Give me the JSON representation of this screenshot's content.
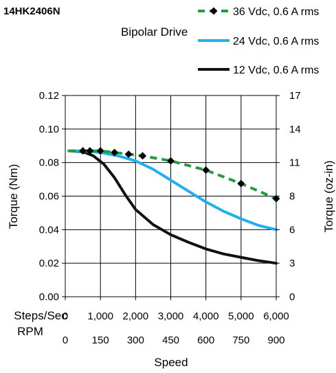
{
  "chart_data": {
    "type": "line",
    "title": "14HK2406N",
    "subtitle": "Bipolar Drive",
    "xlabel": "Speed",
    "ylabel": "Torque (Nm)",
    "ylabel_right": "Torque (oz-in)",
    "x_row_labels": [
      "Steps/Sec",
      "RPM"
    ],
    "xlim": [
      0,
      6000
    ],
    "ylim": [
      0,
      0.12
    ],
    "grid": true,
    "legend_position": "top-right",
    "x_ticks_steps": [
      {
        "value": 0,
        "label": "0"
      },
      {
        "value": 1000,
        "label": "1,000"
      },
      {
        "value": 2000,
        "label": "2,000"
      },
      {
        "value": 3000,
        "label": "3,000"
      },
      {
        "value": 4000,
        "label": "4,000"
      },
      {
        "value": 5000,
        "label": "5,000"
      },
      {
        "value": 6000,
        "label": "6,000"
      }
    ],
    "x_ticks_rpm": [
      {
        "value": 0,
        "label": "0"
      },
      {
        "value": 1000,
        "label": "150"
      },
      {
        "value": 2000,
        "label": "300"
      },
      {
        "value": 3000,
        "label": "450"
      },
      {
        "value": 4000,
        "label": "600"
      },
      {
        "value": 5000,
        "label": "750"
      },
      {
        "value": 6000,
        "label": "900"
      }
    ],
    "y_ticks_left": [
      {
        "value": 0,
        "label": "0.00"
      },
      {
        "value": 0.02,
        "label": "0.02"
      },
      {
        "value": 0.04,
        "label": "0.04"
      },
      {
        "value": 0.06,
        "label": "0.06"
      },
      {
        "value": 0.08,
        "label": "0.08"
      },
      {
        "value": 0.1,
        "label": "0.10"
      },
      {
        "value": 0.12,
        "label": "0.12"
      }
    ],
    "y_ticks_right": [
      {
        "value": 0,
        "label": "0"
      },
      {
        "value": 0.02,
        "label": "3"
      },
      {
        "value": 0.04,
        "label": "6"
      },
      {
        "value": 0.06,
        "label": "8"
      },
      {
        "value": 0.08,
        "label": "11"
      },
      {
        "value": 0.1,
        "label": "14"
      },
      {
        "value": 0.12,
        "label": "17"
      }
    ],
    "series": [
      {
        "name": "36 Vdc, 0.6 A rms",
        "color": "#1f9e3c",
        "style": "dashed",
        "marker": "diamond",
        "x": [
          100,
          300,
          500,
          700,
          1000,
          1400,
          1800,
          2200,
          3000,
          4000,
          5000,
          6000
        ],
        "y": [
          0.087,
          0.087,
          0.087,
          0.087,
          0.087,
          0.086,
          0.085,
          0.084,
          0.081,
          0.0755,
          0.0675,
          0.0585
        ],
        "marker_x": [
          500,
          700,
          1000,
          1400,
          1800,
          2200,
          3000,
          4000,
          5000,
          6000
        ],
        "marker_y": [
          0.087,
          0.087,
          0.087,
          0.086,
          0.085,
          0.084,
          0.081,
          0.0755,
          0.0675,
          0.0585
        ]
      },
      {
        "name": "24 Vdc, 0.6 A rms",
        "color": "#21b0ef",
        "style": "solid",
        "x": [
          100,
          500,
          1000,
          1500,
          2000,
          2500,
          3000,
          3500,
          4000,
          4500,
          5000,
          5500,
          6000
        ],
        "y": [
          0.087,
          0.087,
          0.086,
          0.084,
          0.081,
          0.076,
          0.0695,
          0.063,
          0.0565,
          0.051,
          0.0465,
          0.0425,
          0.04
        ]
      },
      {
        "name": "12 Vdc, 0.6 A rms",
        "color": "#111111",
        "style": "solid",
        "x": [
          100,
          500,
          800,
          1100,
          1400,
          1700,
          2000,
          2500,
          3000,
          3500,
          4000,
          4500,
          5000,
          5500,
          6000
        ],
        "y": [
          0.087,
          0.0865,
          0.084,
          0.079,
          0.071,
          0.061,
          0.052,
          0.043,
          0.037,
          0.0325,
          0.0285,
          0.0255,
          0.0235,
          0.0215,
          0.02
        ]
      }
    ]
  }
}
